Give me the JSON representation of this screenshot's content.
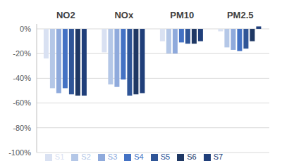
{
  "chart_data": {
    "type": "bar",
    "categories": [
      "NO2",
      "NOx",
      "PM10",
      "PM2.5"
    ],
    "series": [
      {
        "name": "S1",
        "color": "#d9e1f2",
        "values": [
          -24,
          -19,
          -10,
          -2
        ]
      },
      {
        "name": "S2",
        "color": "#b4c7e7",
        "values": [
          -48,
          -45,
          -20,
          -15
        ]
      },
      {
        "name": "S3",
        "color": "#8faadc",
        "values": [
          -52,
          -47,
          -20,
          -17
        ]
      },
      {
        "name": "S4",
        "color": "#4472c4",
        "values": [
          -48,
          -41,
          -11,
          -18
        ]
      },
      {
        "name": "S5",
        "color": "#2f5597",
        "values": [
          -53,
          -54,
          -12,
          -16
        ]
      },
      {
        "name": "S6",
        "color": "#1f3864",
        "values": [
          -54,
          -53,
          -12,
          -10
        ]
      },
      {
        "name": "S7",
        "color": "#203f7a",
        "values": [
          -54,
          -52,
          -10,
          2
        ]
      }
    ],
    "ylim": [
      -100,
      4
    ],
    "yticks": [
      {
        "value": 0,
        "label": "0%"
      },
      {
        "value": -20,
        "label": "-20%"
      },
      {
        "value": -40,
        "label": "-40%"
      },
      {
        "value": -60,
        "label": "-60%"
      },
      {
        "value": -80,
        "label": "-80%"
      },
      {
        "value": -100,
        "label": "-100%"
      }
    ],
    "grid": true,
    "legend": "bottom"
  }
}
